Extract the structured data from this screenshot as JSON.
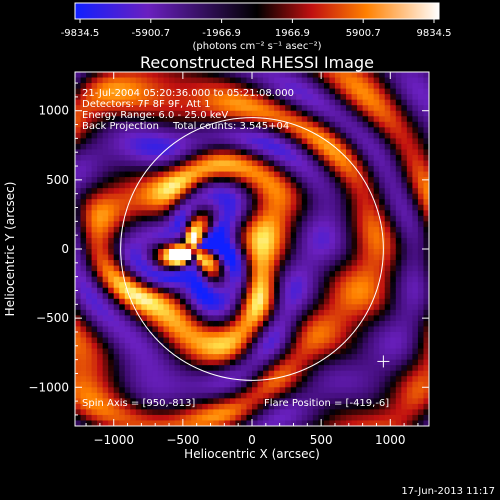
{
  "colorbar": {
    "tick_labels": [
      "-9834.5",
      "-5900.7",
      "-1966.9",
      "1966.9",
      "5900.7",
      "9834.5"
    ],
    "units": "(photons cm⁻² s⁻¹ asec⁻²)",
    "colors": [
      "#1020ff",
      "#6a20c0",
      "#000000",
      "#c01010",
      "#ff8000",
      "#ffffff"
    ]
  },
  "chart_data": {
    "type": "heatmap",
    "title": "Reconstructed RHESSI Image",
    "xlabel": "Heliocentric X (arcsec)",
    "ylabel": "Heliocentric Y (arcsec)",
    "xlim": [
      -1280,
      1280
    ],
    "ylim": [
      -1280,
      1280
    ],
    "x_ticks": [
      -1000,
      -500,
      0,
      500,
      1000
    ],
    "y_ticks": [
      -1000,
      -500,
      0,
      500,
      1000
    ],
    "x_tick_labels": [
      "−1000",
      "−500",
      "0",
      "500",
      "1000"
    ],
    "y_tick_labels": [
      "1000",
      "500",
      "0",
      "−500",
      "−1000"
    ],
    "value_range": [
      -9834.5,
      9834.5
    ],
    "solar_limb": {
      "center": [
        0,
        0
      ],
      "radius": 950
    },
    "flare_position": [
      -419,
      -6
    ],
    "spin_axis": [
      950,
      -813
    ],
    "annotations": {
      "time": "21-Jul-2004 05:20:36.000 to 05:21:08.000",
      "detectors": "Detectors: 7F 8F 9F, Att 1",
      "energy": "Energy Range: 6.0 - 25.0 keV",
      "method": "Back Projection",
      "counts": "Total counts: 3.545+04",
      "spin_axis_label": "Spin Axis = [950,-813]",
      "flare_position_label": "Flare Position = [-419,-6]"
    }
  },
  "footer": {
    "date": "17-Jun-2013 11:17"
  }
}
